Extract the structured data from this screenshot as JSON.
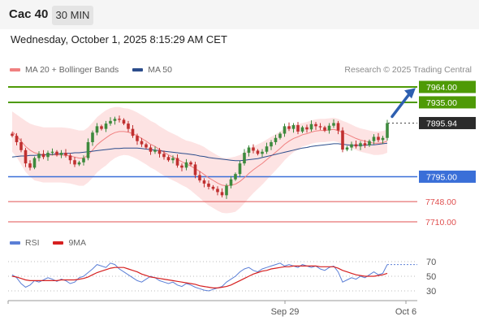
{
  "header": {
    "instrument": "Cac 40",
    "timeframe": "30 MIN",
    "datetime": "Wednesday, October 1, 2025 8:15:29 AM CET"
  },
  "legend": {
    "ma20_label": "MA 20 + Bollinger Bands",
    "ma50_label": "MA 50",
    "credit": "Research © 2025 Trading Central",
    "rsi_label": "RSI",
    "ma9_label": "9MA"
  },
  "colors": {
    "target": "#4e9a06",
    "pivot": "#3a6fd8",
    "support": "#e05050",
    "current": "#2b2b2b",
    "candle_up": "#3d8a3d",
    "candle_down": "#c03030",
    "ma50": "#2c4d8c",
    "ma20": "#f08080",
    "band": "#fcdcdc",
    "rsi": "#5b7fd6",
    "ma9": "#d62020",
    "arrow": "#2e5fb0"
  },
  "chart_data": [
    {
      "type": "candlestick",
      "title": "",
      "x_ticks": [
        "Sep 29",
        "Oct 6"
      ],
      "ylim": [
        7700,
        7975
      ],
      "levels": [
        {
          "name": "target-2",
          "value": 7964.0,
          "label": "7964.00",
          "kind": "target"
        },
        {
          "name": "target-1",
          "value": 7935.0,
          "label": "7935.00",
          "kind": "target"
        },
        {
          "name": "current",
          "value": 7895.94,
          "label": "7895.94",
          "kind": "current"
        },
        {
          "name": "pivot",
          "value": 7795.0,
          "label": "7795.00",
          "kind": "pivot"
        },
        {
          "name": "support-1",
          "value": 7748.0,
          "label": "7748.00",
          "kind": "support"
        },
        {
          "name": "support-2",
          "value": 7710.0,
          "label": "7710.00",
          "kind": "support"
        }
      ],
      "close": [
        7872,
        7860,
        7845,
        7820,
        7812,
        7830,
        7838,
        7832,
        7840,
        7842,
        7836,
        7840,
        7835,
        7826,
        7818,
        7822,
        7830,
        7860,
        7878,
        7890,
        7885,
        7895,
        7900,
        7904,
        7902,
        7895,
        7885,
        7872,
        7862,
        7856,
        7850,
        7842,
        7845,
        7838,
        7832,
        7826,
        7830,
        7816,
        7812,
        7822,
        7818,
        7798,
        7788,
        7782,
        7776,
        7772,
        7766,
        7760,
        7778,
        7790,
        7800,
        7820,
        7840,
        7850,
        7844,
        7838,
        7842,
        7852,
        7860,
        7868,
        7876,
        7890,
        7885,
        7892,
        7880,
        7888,
        7884,
        7894,
        7890,
        7888,
        7882,
        7891,
        7896,
        7882,
        7846,
        7850,
        7856,
        7852,
        7858,
        7854,
        7862,
        7870,
        7864,
        7868,
        7895.94
      ],
      "ma20": [
        7880,
        7872,
        7862,
        7852,
        7845,
        7840,
        7838,
        7836,
        7836,
        7836,
        7836,
        7836,
        7835,
        7834,
        7832,
        7830,
        7830,
        7836,
        7845,
        7855,
        7862,
        7868,
        7874,
        7878,
        7880,
        7880,
        7879,
        7876,
        7872,
        7867,
        7862,
        7856,
        7852,
        7846,
        7841,
        7836,
        7832,
        7828,
        7823,
        7819,
        7815,
        7810,
        7805,
        7799,
        7793,
        7788,
        7783,
        7779,
        7778,
        7779,
        7781,
        7786,
        7793,
        7801,
        7808,
        7814,
        7820,
        7827,
        7834,
        7841,
        7848,
        7856,
        7862,
        7867,
        7870,
        7874,
        7876,
        7879,
        7881,
        7882,
        7882,
        7883,
        7884,
        7882,
        7878,
        7875,
        7871,
        7867,
        7864,
        7862,
        7860,
        7858,
        7858,
        7859,
        7862
      ],
      "ma50": [
        7832,
        7833,
        7834,
        7834,
        7835,
        7835,
        7836,
        7836,
        7837,
        7837,
        7838,
        7838,
        7839,
        7839,
        7840,
        7840,
        7841,
        7842,
        7843,
        7844,
        7845,
        7846,
        7847,
        7848,
        7848,
        7849,
        7849,
        7849,
        7849,
        7848,
        7847,
        7846,
        7845,
        7844,
        7843,
        7842,
        7841,
        7840,
        7839,
        7838,
        7837,
        7836,
        7834,
        7833,
        7831,
        7830,
        7829,
        7828,
        7827,
        7826,
        7825,
        7825,
        7826,
        7827,
        7828,
        7829,
        7831,
        7833,
        7835,
        7837,
        7839,
        7841,
        7843,
        7845,
        7847,
        7849,
        7850,
        7852,
        7853,
        7854,
        7855,
        7856,
        7857,
        7857,
        7856,
        7855,
        7854,
        7854,
        7854,
        7854,
        7855,
        7855,
        7856,
        7857,
        7858
      ],
      "band_width": [
        38,
        40,
        44,
        48,
        50,
        52,
        52,
        52,
        52,
        52,
        52,
        52,
        52,
        52,
        52,
        52,
        52,
        52,
        52,
        52,
        52,
        52,
        50,
        48,
        46,
        44,
        44,
        44,
        44,
        44,
        44,
        44,
        44,
        44,
        44,
        44,
        44,
        44,
        44,
        44,
        46,
        48,
        50,
        52,
        52,
        52,
        52,
        52,
        52,
        52,
        52,
        50,
        48,
        46,
        44,
        42,
        40,
        38,
        36,
        34,
        32,
        30,
        28,
        26,
        24,
        22,
        22,
        22,
        22,
        22,
        22,
        22,
        22,
        22,
        22,
        22,
        22,
        22,
        22,
        22,
        22,
        22,
        22,
        22,
        22
      ],
      "arrow_from": 7896,
      "arrow_to": 7962
    },
    {
      "type": "line",
      "title": "",
      "series_names": [
        "RSI",
        "9MA"
      ],
      "ylim": [
        20,
        80
      ],
      "y_ticks": [
        70,
        50,
        30
      ],
      "rsi": [
        52,
        48,
        40,
        35,
        38,
        44,
        42,
        45,
        48,
        46,
        43,
        46,
        44,
        40,
        42,
        48,
        50,
        55,
        60,
        66,
        64,
        62,
        68,
        66,
        60,
        56,
        52,
        48,
        44,
        42,
        46,
        50,
        48,
        44,
        42,
        40,
        42,
        38,
        36,
        40,
        38,
        35,
        33,
        31,
        30,
        32,
        34,
        36,
        42,
        46,
        50,
        56,
        60,
        62,
        58,
        56,
        60,
        62,
        64,
        66,
        68,
        64,
        66,
        64,
        62,
        66,
        64,
        62,
        64,
        60,
        58,
        62,
        64,
        56,
        42,
        45,
        48,
        46,
        50,
        48,
        52,
        56,
        52,
        54,
        66
      ],
      "ma9": [
        50,
        49,
        47,
        45,
        44,
        44,
        44,
        44,
        44,
        44,
        44,
        45,
        45,
        45,
        45,
        46,
        47,
        49,
        52,
        55,
        57,
        59,
        61,
        62,
        62,
        62,
        60,
        58,
        56,
        53,
        51,
        49,
        48,
        47,
        46,
        45,
        44,
        43,
        42,
        41,
        40,
        39,
        37,
        36,
        35,
        34,
        34,
        35,
        36,
        38,
        41,
        44,
        47,
        50,
        53,
        55,
        57,
        58,
        60,
        61,
        62,
        63,
        63,
        64,
        64,
        64,
        64,
        64,
        64,
        63,
        63,
        63,
        63,
        61,
        58,
        56,
        54,
        52,
        51,
        50,
        50,
        50,
        51,
        52,
        54
      ]
    }
  ]
}
